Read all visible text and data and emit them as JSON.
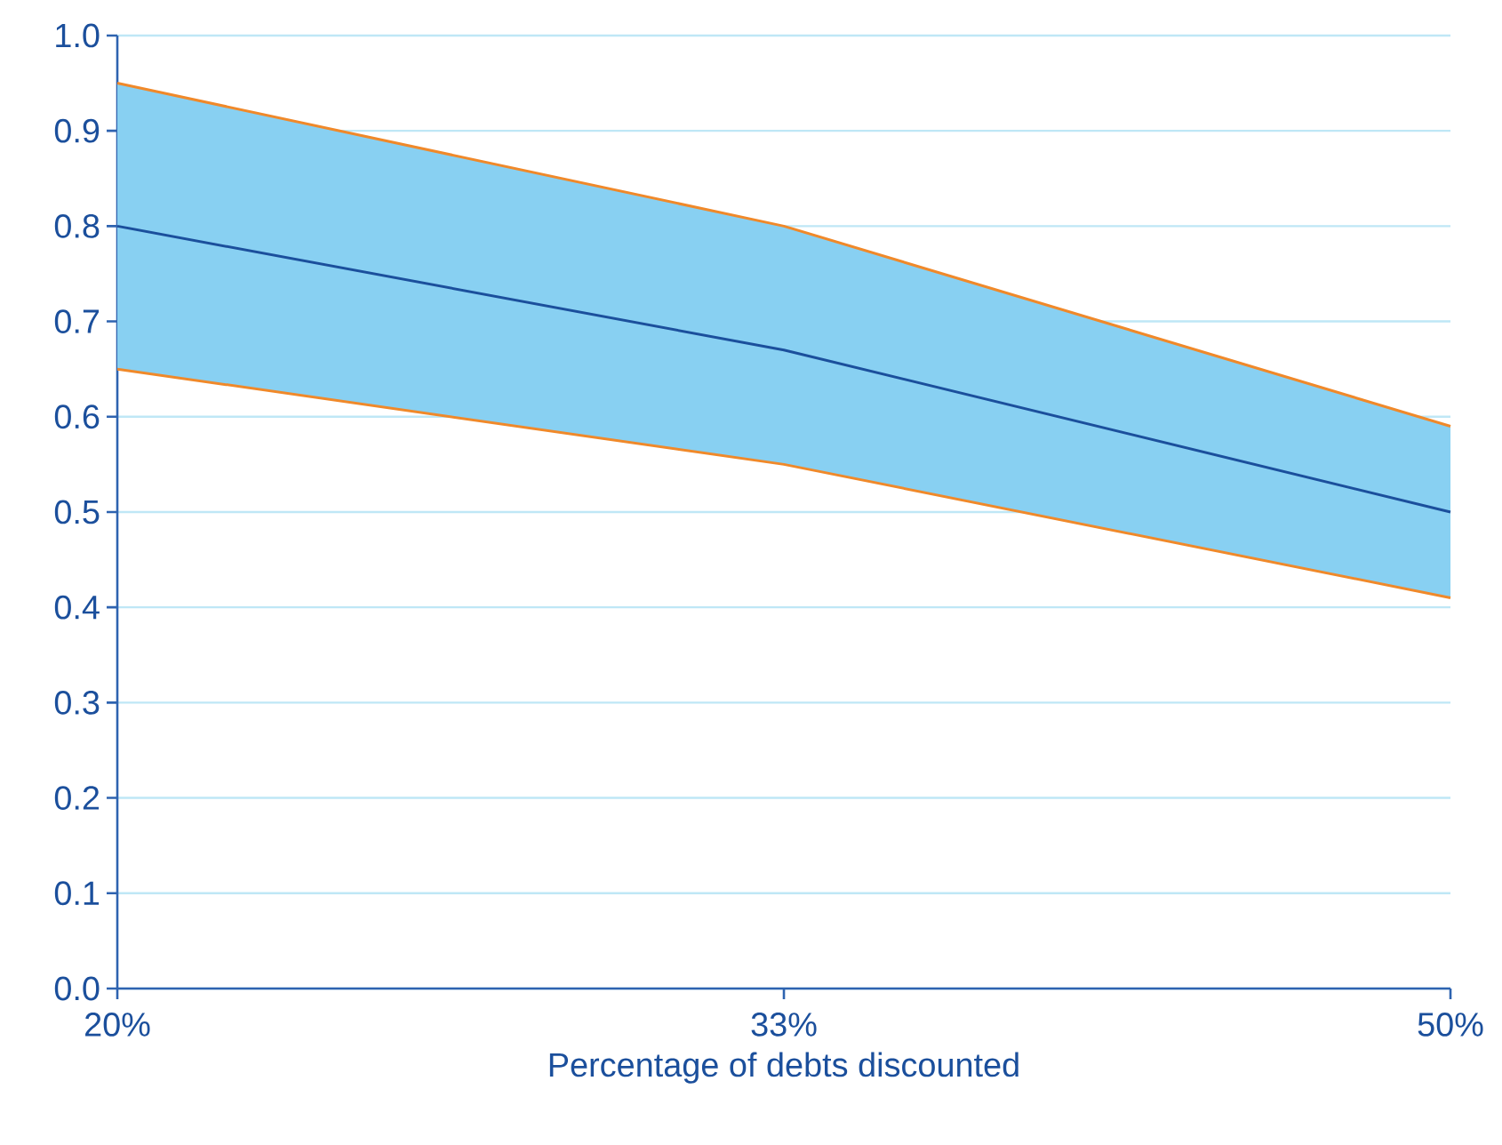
{
  "chart_data": {
    "type": "line",
    "xlabel": "Percentage of debts discounted",
    "categories": [
      "20%",
      "33%",
      "50%"
    ],
    "series": [
      {
        "color": "#1b4f9c",
        "values": [
          0.8,
          0.67,
          0.5
        ],
        "lower": [
          0.65,
          0.55,
          0.41
        ],
        "upper": [
          0.95,
          0.8,
          0.59
        ]
      },
      {
        "color": "#f0892a",
        "values": [
          0.95,
          0.8,
          0.59
        ]
      },
      {
        "color": "#f0892a",
        "values": [
          0.65,
          0.55,
          0.41
        ]
      }
    ],
    "ylim": [
      0,
      1
    ],
    "yticks": [
      {
        "value": 0,
        "label": "0.0"
      },
      0.1,
      0.2,
      0.3,
      0.4,
      0.5,
      0.6,
      0.7,
      0.8,
      0.9,
      {
        "value": 1,
        "label": "1.0"
      }
    ],
    "grid": "y",
    "line_style": "solid"
  }
}
